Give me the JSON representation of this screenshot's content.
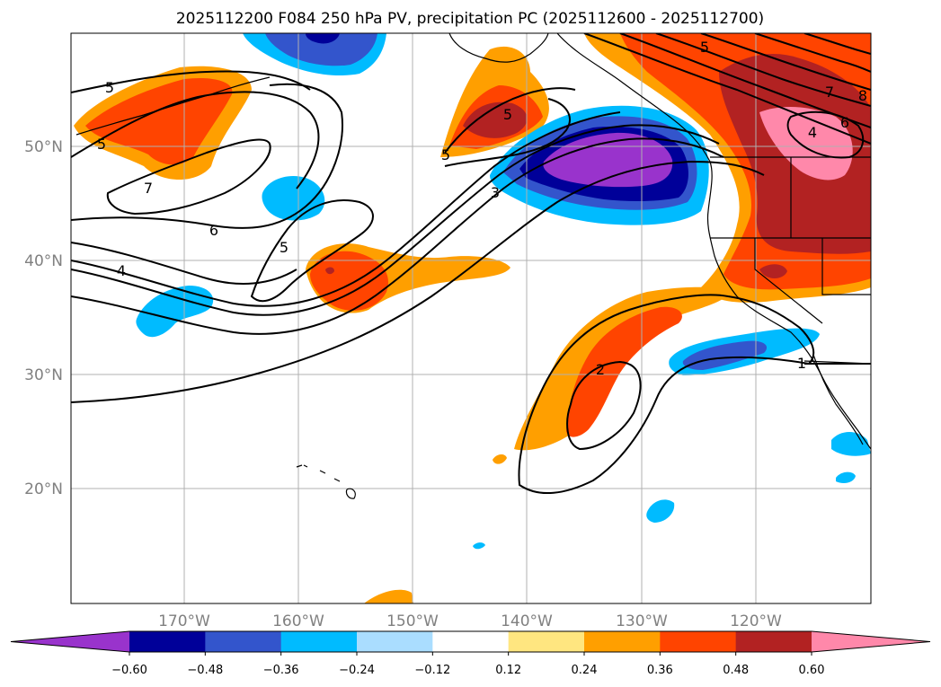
{
  "title": "2025112200 F084 250 hPa PV, precipitation PC (2025112600 - 2025112700)",
  "map": {
    "lat_labels": [
      "50°N",
      "40°N",
      "30°N",
      "20°N"
    ],
    "lon_labels": [
      "170°W",
      "160°W",
      "150°W",
      "140°W",
      "130°W",
      "120°W"
    ],
    "contour_labels": [
      "5",
      "5",
      "7",
      "6",
      "4",
      "5",
      "5",
      "3",
      "5",
      "2",
      "1",
      "7",
      "6",
      "4",
      "8",
      "5"
    ]
  },
  "colorbar": {
    "ticks": [
      "−0.60",
      "−0.48",
      "−0.36",
      "−0.24",
      "−0.12",
      "0.12",
      "0.24",
      "0.36",
      "0.48",
      "0.60"
    ],
    "colors": [
      "#9933cc",
      "#000099",
      "#3355cc",
      "#00bbff",
      "#aaddff",
      "#ffffff",
      "#ffe680",
      "#ff9f00",
      "#ff4400",
      "#b22222",
      "#ff88aa"
    ]
  }
}
